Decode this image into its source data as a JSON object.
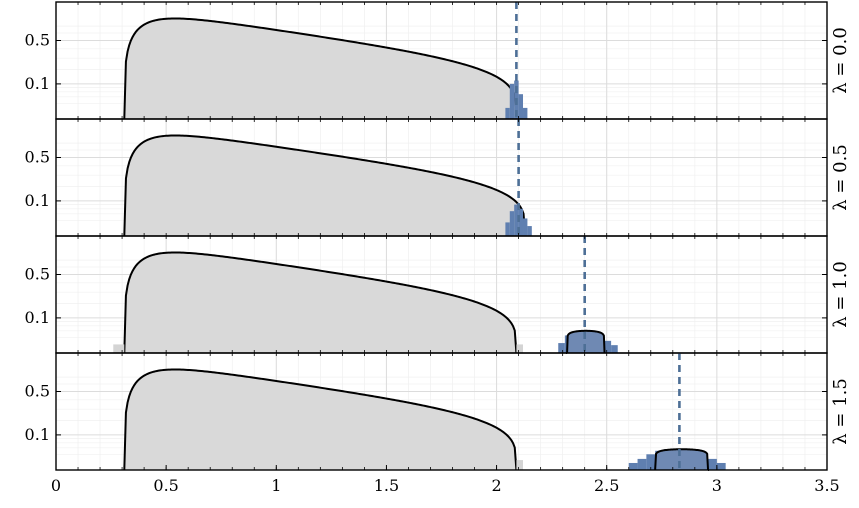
{
  "chart_data": {
    "type": "area",
    "xlim": [
      0,
      3.5
    ],
    "x_ticks": [
      0,
      0.5,
      1,
      1.5,
      2,
      2.5,
      3,
      3.5
    ],
    "x_tick_labels": [
      "0",
      "0.5",
      "1",
      "1.5",
      "2",
      "2.5",
      "3",
      "3.5"
    ],
    "y_tick_labels": [
      "0.5",
      "0.1"
    ],
    "y_ticks": [
      0.5,
      0.1
    ],
    "y_scale": "sqrt",
    "ylim": [
      0,
      1.0
    ],
    "grid": true,
    "colors": {
      "bulk_fill": "#d9d9d9",
      "bulk_hist": "#d4d4d4",
      "outlier_fill": "#6f89b3",
      "outlier_hist": "#5f7fb0",
      "curve": "#000000",
      "dashed_line": "#4d6f96"
    },
    "panels": [
      {
        "label": "λ = 0.0",
        "bulk_edges": [
          0.31,
          2.09
        ],
        "outlier_position": 2.09,
        "outlier_curve": null,
        "outlier_hist": [
          {
            "x0": 2.04,
            "x1": 2.06,
            "y": 0.01
          },
          {
            "x0": 2.06,
            "x1": 2.08,
            "y": 0.1
          },
          {
            "x0": 2.08,
            "x1": 2.1,
            "y": 0.12
          },
          {
            "x0": 2.1,
            "x1": 2.12,
            "y": 0.05
          },
          {
            "x0": 2.12,
            "x1": 2.14,
            "y": 0.01
          }
        ],
        "bulk_hist_tail": []
      },
      {
        "label": "λ = 0.5",
        "bulk_edges": [
          0.31,
          2.13
        ],
        "outlier_position": 2.1,
        "outlier_curve": null,
        "outlier_hist": [
          {
            "x0": 2.04,
            "x1": 2.06,
            "y": 0.015
          },
          {
            "x0": 2.06,
            "x1": 2.08,
            "y": 0.05
          },
          {
            "x0": 2.08,
            "x1": 2.1,
            "y": 0.08
          },
          {
            "x0": 2.1,
            "x1": 2.12,
            "y": 0.06
          },
          {
            "x0": 2.12,
            "x1": 2.14,
            "y": 0.025
          },
          {
            "x0": 2.14,
            "x1": 2.16,
            "y": 0.008
          }
        ],
        "bulk_hist_tail": []
      },
      {
        "label": "λ = 1.0",
        "bulk_edges": [
          0.31,
          2.09
        ],
        "outlier_position": 2.4,
        "outlier_curve": {
          "x0": 2.32,
          "x1": 2.49,
          "peak": 0.04
        },
        "outlier_hist": [
          {
            "x0": 2.28,
            "x1": 2.31,
            "y": 0.008
          },
          {
            "x0": 2.31,
            "x1": 2.34,
            "y": 0.025
          },
          {
            "x0": 2.34,
            "x1": 2.37,
            "y": 0.035
          },
          {
            "x0": 2.37,
            "x1": 2.4,
            "y": 0.04
          },
          {
            "x0": 2.4,
            "x1": 2.43,
            "y": 0.04
          },
          {
            "x0": 2.43,
            "x1": 2.46,
            "y": 0.035
          },
          {
            "x0": 2.46,
            "x1": 2.49,
            "y": 0.025
          },
          {
            "x0": 2.49,
            "x1": 2.52,
            "y": 0.012
          },
          {
            "x0": 2.52,
            "x1": 2.55,
            "y": 0.005
          }
        ],
        "bulk_hist_tail": [
          {
            "x0": 0.26,
            "x1": 0.31,
            "y": 0.006
          },
          {
            "x0": 2.09,
            "x1": 2.12,
            "y": 0.006
          }
        ]
      },
      {
        "label": "λ = 1.5",
        "bulk_edges": [
          0.31,
          2.09
        ],
        "outlier_position": 2.83,
        "outlier_curve": {
          "x0": 2.72,
          "x1": 2.96,
          "peak": 0.035
        },
        "outlier_hist": [
          {
            "x0": 2.6,
            "x1": 2.64,
            "y": 0.004
          },
          {
            "x0": 2.64,
            "x1": 2.68,
            "y": 0.01
          },
          {
            "x0": 2.68,
            "x1": 2.72,
            "y": 0.02
          },
          {
            "x0": 2.72,
            "x1": 2.76,
            "y": 0.03
          },
          {
            "x0": 2.76,
            "x1": 2.8,
            "y": 0.035
          },
          {
            "x0": 2.8,
            "x1": 2.84,
            "y": 0.035
          },
          {
            "x0": 2.84,
            "x1": 2.88,
            "y": 0.035
          },
          {
            "x0": 2.88,
            "x1": 2.92,
            "y": 0.03
          },
          {
            "x0": 2.92,
            "x1": 2.96,
            "y": 0.02
          },
          {
            "x0": 2.96,
            "x1": 3.0,
            "y": 0.01
          },
          {
            "x0": 3.0,
            "x1": 3.04,
            "y": 0.004
          }
        ],
        "bulk_hist_tail": [
          {
            "x0": 2.09,
            "x1": 2.12,
            "y": 0.008
          }
        ]
      }
    ]
  }
}
